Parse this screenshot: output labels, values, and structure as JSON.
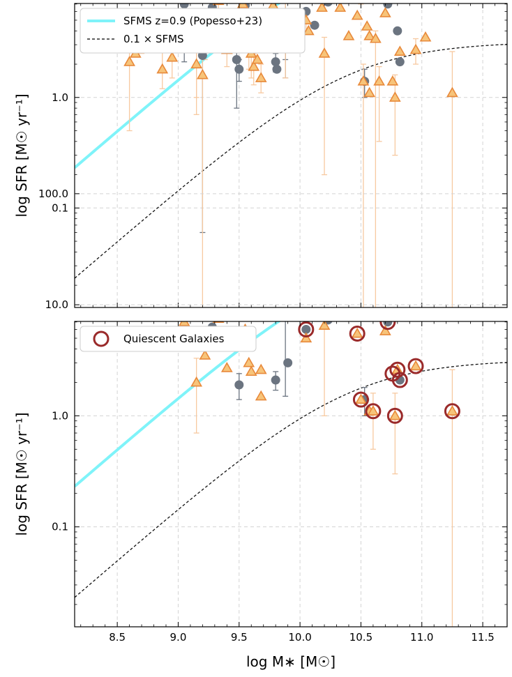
{
  "chart_data": [
    {
      "type": "scatter",
      "panel": "top",
      "xlabel": "log M∗ [M☉]",
      "ylabel": "log SFR [M☉ yr⁻¹]",
      "xlim": [
        8.15,
        11.7
      ],
      "ylim_log10": [
        -1.9,
        0.85
      ],
      "y_scale": "log",
      "x_ticks": [
        "8.5",
        "9.0",
        "9.5",
        "10.0",
        "10.5",
        "11.0",
        "11.5"
      ],
      "y_ticks": [
        "0.1",
        "1.0",
        "10.0",
        "100.0"
      ],
      "grid": true,
      "legend_position": "top-left",
      "legend": [
        {
          "label": "SFMS z=0.9 (Popesso+23)",
          "color": "#7ff3f9",
          "style": "solid"
        },
        {
          "label": "0.1 × SFMS",
          "color": "#000000",
          "style": "dashed"
        }
      ],
      "series": [
        {
          "marker": "circle",
          "color": "#6b7480",
          "points": [
            {
              "x": 9.05,
              "y": 7.0,
              "lo": 5.6,
              "hi": 8.6
            },
            {
              "x": 9.05,
              "y": 2.9,
              "lo": 2.1,
              "hi": 3.6
            },
            {
              "x": 9.2,
              "y": 2.4,
              "lo": 0.06,
              "hi": 3.0
            },
            {
              "x": 9.28,
              "y": 6.5
            },
            {
              "x": 9.35,
              "y": 5.3,
              "lo": 4.3,
              "hi": 6.3
            },
            {
              "x": 9.37,
              "y": 9.3
            },
            {
              "x": 9.4,
              "y": 4.8,
              "lo": 3.6,
              "hi": 6.0
            },
            {
              "x": 9.38,
              "y": 5.0
            },
            {
              "x": 9.48,
              "y": 13.0
            },
            {
              "x": 9.48,
              "y": 2.2,
              "lo": 0.8,
              "hi": 3.0
            },
            {
              "x": 9.5,
              "y": 1.8,
              "lo": 1.4,
              "hi": 2.2
            },
            {
              "x": 9.55,
              "y": 6.8
            },
            {
              "x": 9.65,
              "y": 3.5,
              "lo": 2.8,
              "hi": 4.1
            },
            {
              "x": 9.67,
              "y": 3.2
            },
            {
              "x": 9.68,
              "y": 2.9
            },
            {
              "x": 9.8,
              "y": 2.1,
              "lo": 1.7,
              "hi": 2.5
            },
            {
              "x": 9.81,
              "y": 1.8
            },
            {
              "x": 9.88,
              "y": 11.0,
              "lo": 1.5,
              "hi": 20.0
            },
            {
              "x": 9.88,
              "y": 2.8,
              "lo": 2.2,
              "hi": 3.4
            },
            {
              "x": 9.98,
              "y": 25.0
            },
            {
              "x": 10.0,
              "y": 30.0
            },
            {
              "x": 10.02,
              "y": 8.0
            },
            {
              "x": 10.05,
              "y": 6.0
            },
            {
              "x": 10.12,
              "y": 4.5
            },
            {
              "x": 10.23,
              "y": 7.3
            },
            {
              "x": 10.24,
              "y": 40.0
            },
            {
              "x": 10.3,
              "y": 13.0
            },
            {
              "x": 10.38,
              "y": 20.0
            },
            {
              "x": 10.53,
              "y": 1.4,
              "lo": 1.0,
              "hi": 1.8
            },
            {
              "x": 10.72,
              "y": 7.0
            },
            {
              "x": 10.8,
              "y": 4.0
            },
            {
              "x": 10.82,
              "y": 2.1
            },
            {
              "x": 10.87,
              "y": 15.0
            },
            {
              "x": 10.95,
              "y": 25.0
            }
          ]
        },
        {
          "marker": "triangle",
          "color": "#f7c47a",
          "edge": "#e8893a",
          "points": [
            {
              "x": 8.52,
              "y": 3.5,
              "lo": 2.8,
              "hi": 4.3
            },
            {
              "x": 8.6,
              "y": 2.1,
              "lo": 0.5,
              "hi": 3.0
            },
            {
              "x": 8.65,
              "y": 2.5
            },
            {
              "x": 8.7,
              "y": 3.6,
              "lo": 2.5,
              "hi": 4.8
            },
            {
              "x": 8.87,
              "y": 1.8,
              "lo": 1.2,
              "hi": 2.6
            },
            {
              "x": 8.95,
              "y": 2.3,
              "lo": 1.5,
              "hi": 3.0
            },
            {
              "x": 9.15,
              "y": 3.0,
              "lo": 1.0,
              "hi": 4.0
            },
            {
              "x": 9.15,
              "y": 2.0,
              "lo": 0.7,
              "hi": 3.3
            },
            {
              "x": 9.2,
              "y": 1.6,
              "lo": 0.01,
              "hi": 2.5
            },
            {
              "x": 9.22,
              "y": 3.5,
              "lo": 2.2,
              "hi": 4.8
            },
            {
              "x": 9.33,
              "y": 7.5,
              "lo": 5.0,
              "hi": 9.5
            },
            {
              "x": 9.37,
              "y": 11.0
            },
            {
              "x": 9.4,
              "y": 2.7,
              "lo": 1.9,
              "hi": 3.5
            },
            {
              "x": 9.53,
              "y": 7.0,
              "lo": 5.0,
              "hi": 9.0
            },
            {
              "x": 9.55,
              "y": 5.0
            },
            {
              "x": 9.58,
              "y": 3.0,
              "lo": 1.8,
              "hi": 4.0
            },
            {
              "x": 9.6,
              "y": 2.5,
              "lo": 1.5,
              "hi": 3.5
            },
            {
              "x": 9.62,
              "y": 1.9,
              "lo": 1.3,
              "hi": 2.5
            },
            {
              "x": 9.65,
              "y": 2.2
            },
            {
              "x": 9.67,
              "y": 8.5
            },
            {
              "x": 9.68,
              "y": 1.5,
              "lo": 1.1,
              "hi": 2.0
            },
            {
              "x": 9.73,
              "y": 11.0
            },
            {
              "x": 9.78,
              "y": 6.8
            },
            {
              "x": 9.85,
              "y": 3.0
            },
            {
              "x": 9.88,
              "y": 8.5,
              "lo": 1.5,
              "hi": 12.0
            },
            {
              "x": 9.95,
              "y": 12.0
            },
            {
              "x": 10.05,
              "y": 5.0,
              "lo": 4.0,
              "hi": 6.0
            },
            {
              "x": 10.07,
              "y": 4.0
            },
            {
              "x": 10.18,
              "y": 6.5
            },
            {
              "x": 10.2,
              "y": 2.5,
              "lo": 0.2,
              "hi": 3.5
            },
            {
              "x": 10.23,
              "y": 13.0
            },
            {
              "x": 10.33,
              "y": 6.5
            },
            {
              "x": 10.4,
              "y": 30.0
            },
            {
              "x": 10.4,
              "y": 3.6
            },
            {
              "x": 10.47,
              "y": 5.5
            },
            {
              "x": 10.5,
              "y": 10.5,
              "lo": 7.0,
              "hi": 14.0
            },
            {
              "x": 10.52,
              "y": 1.4,
              "lo": 0.005,
              "hi": 2.0
            },
            {
              "x": 10.55,
              "y": 4.4
            },
            {
              "x": 10.57,
              "y": 3.6
            },
            {
              "x": 10.57,
              "y": 1.1
            },
            {
              "x": 10.62,
              "y": 3.4,
              "lo": 0.01,
              "hi": 4.0
            },
            {
              "x": 10.65,
              "y": 1.4,
              "lo": 0.4,
              "hi": 1.9
            },
            {
              "x": 10.7,
              "y": 5.8
            },
            {
              "x": 10.76,
              "y": 1.4
            },
            {
              "x": 10.78,
              "y": 1.0,
              "lo": 0.3,
              "hi": 1.6
            },
            {
              "x": 10.8,
              "y": 12.0
            },
            {
              "x": 10.82,
              "y": 2.6
            },
            {
              "x": 10.85,
              "y": 20.0
            },
            {
              "x": 10.95,
              "y": 2.7,
              "lo": 2.0,
              "hi": 3.4
            },
            {
              "x": 11.03,
              "y": 3.5
            },
            {
              "x": 11.25,
              "y": 1.1,
              "lo": 0.005,
              "hi": 2.6
            }
          ]
        }
      ]
    },
    {
      "type": "scatter",
      "panel": "bottom",
      "xlabel": "log M∗ [M☉]",
      "ylabel": "log SFR [M☉ yr⁻¹]",
      "xlim": [
        8.15,
        11.7
      ],
      "ylim_log10": [
        -1.9,
        0.85
      ],
      "y_scale": "log",
      "x_ticks": [
        "8.5",
        "9.0",
        "9.5",
        "10.0",
        "10.5",
        "11.0",
        "11.5"
      ],
      "y_ticks": [
        "0.1",
        "1.0",
        "10.0",
        "100.0"
      ],
      "grid": true,
      "legend_position": "top-left",
      "legend": [
        {
          "label": "Quiescent Galaxies",
          "color": "#9a2a2a",
          "style": "open-circle"
        }
      ],
      "series": [
        {
          "marker": "circle",
          "color": "#6b7480",
          "points": [
            {
              "x": 9.28,
              "y": 6.3
            },
            {
              "x": 9.35,
              "y": 5.2,
              "lo": 4.3,
              "hi": 6.3
            },
            {
              "x": 9.38,
              "y": 4.8
            },
            {
              "x": 9.5,
              "y": 1.9,
              "lo": 1.4,
              "hi": 2.4
            },
            {
              "x": 9.8,
              "y": 2.1,
              "lo": 1.7,
              "hi": 2.5
            },
            {
              "x": 9.88,
              "y": 11.0,
              "lo": 1.5,
              "hi": 20.0
            },
            {
              "x": 9.9,
              "y": 3.0
            },
            {
              "x": 10.0,
              "y": 30.0
            },
            {
              "x": 10.02,
              "y": 8.0
            },
            {
              "x": 10.05,
              "y": 6.0
            },
            {
              "x": 10.23,
              "y": 7.3
            },
            {
              "x": 10.3,
              "y": 13.0
            },
            {
              "x": 10.38,
              "y": 20.0
            },
            {
              "x": 10.53,
              "y": 1.4,
              "lo": 1.0,
              "hi": 1.8
            },
            {
              "x": 10.72,
              "y": 7.0
            },
            {
              "x": 10.82,
              "y": 2.1
            },
            {
              "x": 10.87,
              "y": 15.0
            },
            {
              "x": 10.95,
              "y": 25.0
            }
          ]
        },
        {
          "marker": "triangle",
          "color": "#f7c47a",
          "edge": "#e8893a",
          "points": [
            {
              "x": 9.05,
              "y": 7.0
            },
            {
              "x": 9.15,
              "y": 2.0,
              "lo": 0.7,
              "hi": 3.3
            },
            {
              "x": 9.22,
              "y": 3.5
            },
            {
              "x": 9.33,
              "y": 7.5
            },
            {
              "x": 9.4,
              "y": 2.7
            },
            {
              "x": 9.55,
              "y": 6.0
            },
            {
              "x": 9.58,
              "y": 3.0
            },
            {
              "x": 9.6,
              "y": 2.5
            },
            {
              "x": 9.68,
              "y": 2.6
            },
            {
              "x": 9.68,
              "y": 1.5
            },
            {
              "x": 9.73,
              "y": 11.0
            },
            {
              "x": 9.88,
              "y": 9.0
            },
            {
              "x": 9.95,
              "y": 12.0
            },
            {
              "x": 10.05,
              "y": 5.0
            },
            {
              "x": 10.2,
              "y": 6.5,
              "lo": 1.0,
              "hi": 9.0
            },
            {
              "x": 10.23,
              "y": 13.0
            },
            {
              "x": 10.4,
              "y": 30.0
            },
            {
              "x": 10.47,
              "y": 5.5
            },
            {
              "x": 10.5,
              "y": 1.4
            },
            {
              "x": 10.57,
              "y": 1.1
            },
            {
              "x": 10.6,
              "y": 1.1,
              "lo": 0.5,
              "hi": 1.6
            },
            {
              "x": 10.7,
              "y": 5.8
            },
            {
              "x": 10.78,
              "y": 1.0,
              "lo": 0.3,
              "hi": 1.6
            },
            {
              "x": 10.8,
              "y": 12.0
            },
            {
              "x": 10.8,
              "y": 2.6
            },
            {
              "x": 10.95,
              "y": 2.8
            },
            {
              "x": 11.25,
              "y": 1.1,
              "lo": 0.005,
              "hi": 2.6
            }
          ]
        },
        {
          "marker": "open-circle",
          "color": "#9a2a2a",
          "points": [
            {
              "x": 10.05,
              "y": 6.0
            },
            {
              "x": 10.3,
              "y": 13.0
            },
            {
              "x": 10.47,
              "y": 5.5
            },
            {
              "x": 10.5,
              "y": 1.4
            },
            {
              "x": 10.6,
              "y": 1.1
            },
            {
              "x": 10.72,
              "y": 7.0
            },
            {
              "x": 10.76,
              "y": 2.4
            },
            {
              "x": 10.78,
              "y": 1.0
            },
            {
              "x": 10.8,
              "y": 2.6
            },
            {
              "x": 10.82,
              "y": 2.1
            },
            {
              "x": 10.87,
              "y": 15.0
            },
            {
              "x": 10.95,
              "y": 25.0
            },
            {
              "x": 10.95,
              "y": 2.8
            },
            {
              "x": 11.25,
              "y": 1.1
            }
          ]
        }
      ]
    }
  ],
  "sfms": {
    "amplitude": 32.0,
    "turnover_logm": 10.4,
    "steepness": 0.95,
    "scale": 0.1
  }
}
